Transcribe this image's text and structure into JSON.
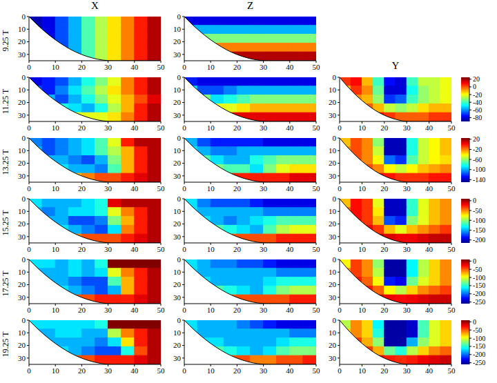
{
  "column_titles": [
    "X",
    "Z",
    "Y"
  ],
  "row_labels": [
    "9.25 T",
    "11.25 T",
    "13.25 T",
    "15.25 T",
    "17.25 T",
    "19.25 T"
  ],
  "xlim": [
    0,
    50
  ],
  "xticks": [
    0,
    10,
    20,
    30,
    40,
    50
  ],
  "ylim": [
    0,
    35
  ],
  "yticks": [
    0,
    10,
    20,
    30
  ],
  "x_edges": [
    0,
    5,
    10,
    15,
    20,
    25,
    30,
    35,
    40,
    45,
    50
  ],
  "y_edges": [
    0,
    7,
    14,
    21,
    28,
    35
  ],
  "bottom": {
    "x": [
      0,
      4,
      8,
      12,
      16,
      20,
      24,
      28,
      32,
      36,
      40,
      44,
      50
    ],
    "depth": [
      0,
      8.2,
      15.3,
      21.3,
      26.3,
      30.1,
      32.8,
      34.5,
      35,
      35,
      35,
      35,
      35
    ]
  },
  "chart_data": [
    {
      "type": "heatmap",
      "row": 0,
      "column": 0,
      "color_range": [
        0,
        1
      ],
      "cells": [
        [
          0.05,
          0.1,
          0.2,
          0.3,
          0.45,
          0.55,
          0.65,
          0.75,
          0.85,
          0.95
        ],
        [
          0.05,
          0.1,
          0.2,
          0.3,
          0.45,
          0.55,
          0.65,
          0.75,
          0.85,
          0.95
        ],
        [
          0.05,
          0.1,
          0.2,
          0.3,
          0.45,
          0.55,
          0.65,
          0.75,
          0.85,
          0.95
        ],
        [
          0.05,
          0.1,
          0.2,
          0.3,
          0.45,
          0.55,
          0.65,
          0.75,
          0.85,
          0.95
        ],
        [
          0.05,
          0.1,
          0.2,
          0.3,
          0.45,
          0.55,
          0.65,
          0.75,
          0.85,
          0.95
        ]
      ]
    },
    {
      "type": "heatmap",
      "row": 0,
      "column": 1,
      "color_range": [
        0,
        1
      ],
      "cells": [
        [
          0.1,
          0.1,
          0.1,
          0.1,
          0.1,
          0.1,
          0.1,
          0.1,
          0.1,
          0.1
        ],
        [
          0.3,
          0.3,
          0.3,
          0.3,
          0.3,
          0.3,
          0.3,
          0.3,
          0.3,
          0.3
        ],
        [
          0.5,
          0.5,
          0.5,
          0.5,
          0.5,
          0.5,
          0.5,
          0.5,
          0.5,
          0.5
        ],
        [
          0.75,
          0.75,
          0.75,
          0.75,
          0.75,
          0.75,
          0.75,
          0.75,
          0.75,
          0.75
        ],
        [
          0.95,
          0.95,
          0.95,
          0.95,
          0.95,
          0.95,
          0.95,
          0.95,
          0.95,
          0.95
        ]
      ]
    },
    {
      "type": "heatmap",
      "row": 1,
      "column": 0,
      "color_range": [
        0,
        1
      ],
      "cells": [
        [
          0.1,
          0.15,
          0.2,
          0.3,
          0.4,
          0.5,
          0.6,
          0.75,
          0.85,
          0.95
        ],
        [
          0.2,
          0.15,
          0.25,
          0.35,
          0.45,
          0.55,
          0.65,
          0.75,
          0.85,
          0.95
        ],
        [
          0.3,
          0.3,
          0.2,
          0.3,
          0.4,
          0.5,
          0.6,
          0.7,
          0.8,
          0.9
        ],
        [
          0.4,
          0.4,
          0.4,
          0.35,
          0.3,
          0.4,
          0.55,
          0.7,
          0.85,
          0.95
        ],
        [
          0.6,
          0.6,
          0.6,
          0.6,
          0.6,
          0.6,
          0.65,
          0.75,
          0.85,
          0.95
        ]
      ]
    },
    {
      "type": "heatmap",
      "row": 1,
      "column": 1,
      "color_range": [
        0,
        1
      ],
      "cells": [
        [
          0.15,
          0.1,
          0.1,
          0.1,
          0.1,
          0.1,
          0.1,
          0.1,
          0.1,
          0.1
        ],
        [
          0.35,
          0.2,
          0.2,
          0.25,
          0.3,
          0.3,
          0.3,
          0.3,
          0.3,
          0.3
        ],
        [
          0.5,
          0.5,
          0.35,
          0.4,
          0.45,
          0.5,
          0.5,
          0.5,
          0.5,
          0.5
        ],
        [
          0.7,
          0.7,
          0.6,
          0.6,
          0.65,
          0.7,
          0.7,
          0.7,
          0.7,
          0.7
        ],
        [
          0.9,
          0.9,
          0.9,
          0.9,
          0.9,
          0.9,
          0.9,
          0.9,
          0.9,
          0.9
        ]
      ]
    },
    {
      "type": "heatmap",
      "row": 1,
      "column": 2,
      "colorbar": {
        "range": [
          -90,
          25
        ],
        "ticks": [
          20,
          0,
          -20,
          -40,
          -60,
          -80
        ]
      },
      "cells": [
        [
          5,
          10,
          -10,
          -40,
          -75,
          -80,
          -40,
          -25,
          -25,
          -20
        ],
        [
          -10,
          5,
          -5,
          -35,
          -80,
          -80,
          -45,
          -30,
          -25,
          -20
        ],
        [
          -5,
          -5,
          -10,
          -30,
          -70,
          -65,
          -40,
          -30,
          -25,
          -20
        ],
        [
          10,
          5,
          0,
          -10,
          -25,
          -30,
          -25,
          -15,
          -10,
          -10
        ],
        [
          15,
          15,
          15,
          10,
          5,
          0,
          0,
          0,
          5,
          5
        ]
      ]
    },
    {
      "type": "heatmap",
      "row": 2,
      "column": 0,
      "color_range": [
        0,
        1
      ],
      "cells": [
        [
          0.25,
          0.2,
          0.25,
          0.3,
          0.35,
          0.45,
          0.6,
          0.85,
          0.95,
          0.95
        ],
        [
          0.3,
          0.2,
          0.25,
          0.3,
          0.35,
          0.45,
          0.55,
          0.7,
          0.85,
          0.95
        ],
        [
          0.3,
          0.3,
          0.3,
          0.25,
          0.2,
          0.3,
          0.5,
          0.7,
          0.85,
          0.95
        ],
        [
          0.5,
          0.4,
          0.35,
          0.3,
          0.3,
          0.25,
          0.45,
          0.7,
          0.85,
          0.95
        ],
        [
          0.7,
          0.7,
          0.7,
          0.7,
          0.75,
          0.8,
          0.8,
          0.85,
          0.9,
          0.95
        ]
      ]
    },
    {
      "type": "heatmap",
      "row": 2,
      "column": 1,
      "color_range": [
        0,
        1
      ],
      "cells": [
        [
          0.3,
          0.2,
          0.15,
          0.15,
          0.15,
          0.15,
          0.1,
          0.1,
          0.1,
          0.1
        ],
        [
          0.35,
          0.3,
          0.25,
          0.25,
          0.3,
          0.3,
          0.3,
          0.3,
          0.3,
          0.3
        ],
        [
          0.5,
          0.45,
          0.35,
          0.3,
          0.3,
          0.4,
          0.45,
          0.5,
          0.5,
          0.5
        ],
        [
          0.7,
          0.6,
          0.5,
          0.45,
          0.45,
          0.35,
          0.5,
          0.6,
          0.65,
          0.65
        ],
        [
          0.9,
          0.9,
          0.9,
          0.85,
          0.85,
          0.85,
          0.85,
          0.85,
          0.9,
          0.9
        ]
      ]
    },
    {
      "type": "heatmap",
      "row": 2,
      "column": 2,
      "colorbar": {
        "range": [
          -150,
          25
        ],
        "ticks": [
          20,
          -20,
          -60,
          -100,
          -140
        ]
      },
      "cells": [
        [
          -30,
          -10,
          -20,
          -60,
          -140,
          -140,
          -80,
          -50,
          -40,
          -30
        ],
        [
          -20,
          -10,
          -20,
          -50,
          -140,
          -140,
          -80,
          -50,
          -40,
          -30
        ],
        [
          -10,
          -10,
          -20,
          -40,
          -110,
          -120,
          -70,
          -50,
          -40,
          -35
        ],
        [
          0,
          0,
          -10,
          -20,
          -40,
          -50,
          -40,
          -30,
          -25,
          -20
        ],
        [
          10,
          10,
          10,
          5,
          0,
          -5,
          -5,
          -5,
          0,
          0
        ]
      ]
    },
    {
      "type": "heatmap",
      "row": 3,
      "column": 0,
      "color_range": [
        0,
        1
      ],
      "cells": [
        [
          0.35,
          0.3,
          0.3,
          0.3,
          0.35,
          0.4,
          0.9,
          0.95,
          0.95,
          0.95
        ],
        [
          0.3,
          0.25,
          0.3,
          0.35,
          0.35,
          0.4,
          0.6,
          0.75,
          0.85,
          0.95
        ],
        [
          0.35,
          0.3,
          0.3,
          0.2,
          0.2,
          0.25,
          0.5,
          0.7,
          0.85,
          0.95
        ],
        [
          0.5,
          0.4,
          0.35,
          0.3,
          0.25,
          0.2,
          0.35,
          0.75,
          0.85,
          0.95
        ],
        [
          0.7,
          0.7,
          0.7,
          0.75,
          0.8,
          0.8,
          0.8,
          0.85,
          0.9,
          0.95
        ]
      ]
    },
    {
      "type": "heatmap",
      "row": 3,
      "column": 1,
      "color_range": [
        0,
        1
      ],
      "cells": [
        [
          0.35,
          0.25,
          0.2,
          0.2,
          0.2,
          0.15,
          0.1,
          0.1,
          0.1,
          0.1
        ],
        [
          0.35,
          0.3,
          0.3,
          0.3,
          0.3,
          0.3,
          0.25,
          0.25,
          0.25,
          0.25
        ],
        [
          0.45,
          0.35,
          0.3,
          0.25,
          0.3,
          0.35,
          0.4,
          0.45,
          0.45,
          0.45
        ],
        [
          0.65,
          0.5,
          0.45,
          0.4,
          0.35,
          0.3,
          0.45,
          0.55,
          0.6,
          0.6
        ],
        [
          0.9,
          0.85,
          0.85,
          0.8,
          0.8,
          0.8,
          0.8,
          0.85,
          0.85,
          0.85
        ]
      ]
    },
    {
      "type": "heatmap",
      "row": 3,
      "column": 2,
      "colorbar": {
        "range": [
          -215,
          10
        ],
        "ticks": [
          0,
          -50,
          -100,
          -150,
          -200
        ]
      },
      "cells": [
        [
          -60,
          -20,
          -30,
          -80,
          -200,
          -200,
          -120,
          -80,
          -60,
          -50
        ],
        [
          -40,
          -20,
          -30,
          -70,
          -200,
          -200,
          -120,
          -80,
          -60,
          -50
        ],
        [
          -20,
          -20,
          -30,
          -60,
          -170,
          -180,
          -100,
          -80,
          -60,
          -50
        ],
        [
          -10,
          -10,
          -15,
          -30,
          -60,
          -80,
          -60,
          -50,
          -40,
          -30
        ],
        [
          0,
          0,
          0,
          -5,
          -10,
          -15,
          -15,
          -10,
          -5,
          -5
        ]
      ]
    },
    {
      "type": "heatmap",
      "row": 4,
      "column": 0,
      "color_range": [
        0,
        1
      ],
      "cells": [
        [
          0.35,
          0.35,
          0.3,
          0.35,
          0.3,
          0.4,
          1.0,
          1.0,
          1.0,
          1.0
        ],
        [
          0.3,
          0.3,
          0.3,
          0.35,
          0.3,
          0.35,
          0.6,
          0.75,
          0.85,
          0.95
        ],
        [
          0.35,
          0.3,
          0.3,
          0.25,
          0.2,
          0.2,
          0.45,
          0.7,
          0.85,
          0.95
        ],
        [
          0.5,
          0.4,
          0.35,
          0.3,
          0.25,
          0.2,
          0.3,
          0.7,
          0.85,
          0.95
        ],
        [
          0.75,
          0.75,
          0.75,
          0.8,
          0.8,
          0.85,
          0.85,
          0.85,
          0.9,
          0.95
        ]
      ]
    },
    {
      "type": "heatmap",
      "row": 4,
      "column": 1,
      "color_range": [
        0,
        1
      ],
      "cells": [
        [
          0.35,
          0.3,
          0.25,
          0.25,
          0.2,
          0.2,
          0.15,
          0.1,
          0.1,
          0.1
        ],
        [
          0.35,
          0.3,
          0.3,
          0.3,
          0.3,
          0.3,
          0.3,
          0.25,
          0.25,
          0.25
        ],
        [
          0.4,
          0.35,
          0.3,
          0.3,
          0.3,
          0.3,
          0.35,
          0.4,
          0.4,
          0.4
        ],
        [
          0.6,
          0.5,
          0.45,
          0.4,
          0.35,
          0.3,
          0.4,
          0.5,
          0.55,
          0.55
        ],
        [
          0.9,
          0.85,
          0.85,
          0.8,
          0.8,
          0.8,
          0.8,
          0.8,
          0.85,
          0.85
        ]
      ]
    },
    {
      "type": "heatmap",
      "row": 4,
      "column": 2,
      "colorbar": {
        "range": [
          -260,
          10
        ],
        "ticks": [
          0,
          -50,
          -100,
          -150,
          -200,
          -250
        ]
      },
      "cells": [
        [
          -90,
          -40,
          -60,
          -120,
          -250,
          -250,
          -160,
          -110,
          -80,
          -60
        ],
        [
          -60,
          -40,
          -60,
          -110,
          -250,
          -250,
          -160,
          -110,
          -80,
          -60
        ],
        [
          -30,
          -30,
          -50,
          -90,
          -220,
          -230,
          -130,
          -100,
          -80,
          -60
        ],
        [
          -10,
          -15,
          -30,
          -50,
          -90,
          -110,
          -80,
          -60,
          -50,
          -40
        ],
        [
          0,
          0,
          -5,
          -10,
          -20,
          -25,
          -20,
          -15,
          -10,
          -10
        ]
      ]
    },
    {
      "type": "heatmap",
      "row": 5,
      "column": 0,
      "color_range": [
        0,
        1
      ],
      "cells": [
        [
          0.35,
          0.35,
          0.35,
          0.35,
          0.35,
          0.4,
          1.0,
          1.0,
          1.0,
          1.0
        ],
        [
          0.3,
          0.3,
          0.35,
          0.35,
          0.3,
          0.3,
          0.55,
          0.75,
          0.85,
          0.95
        ],
        [
          0.35,
          0.3,
          0.3,
          0.3,
          0.3,
          0.25,
          0.35,
          0.65,
          0.85,
          0.95
        ],
        [
          0.5,
          0.4,
          0.35,
          0.3,
          0.25,
          0.2,
          0.2,
          0.4,
          0.8,
          0.95
        ],
        [
          0.8,
          0.8,
          0.8,
          0.8,
          0.8,
          0.85,
          0.85,
          0.85,
          0.9,
          0.95
        ]
      ]
    },
    {
      "type": "heatmap",
      "row": 5,
      "column": 1,
      "color_range": [
        0,
        1
      ],
      "cells": [
        [
          0.35,
          0.3,
          0.3,
          0.3,
          0.25,
          0.2,
          0.15,
          0.1,
          0.1,
          0.1
        ],
        [
          0.35,
          0.3,
          0.3,
          0.3,
          0.3,
          0.3,
          0.3,
          0.3,
          0.25,
          0.25
        ],
        [
          0.4,
          0.35,
          0.35,
          0.3,
          0.3,
          0.3,
          0.3,
          0.35,
          0.4,
          0.4
        ],
        [
          0.6,
          0.5,
          0.45,
          0.4,
          0.35,
          0.3,
          0.35,
          0.45,
          0.5,
          0.5
        ],
        [
          0.85,
          0.85,
          0.8,
          0.8,
          0.8,
          0.75,
          0.75,
          0.8,
          0.8,
          0.85
        ]
      ]
    },
    {
      "type": "heatmap",
      "row": 5,
      "column": 2,
      "colorbar": {
        "range": [
          -260,
          10
        ],
        "ticks": [
          0,
          -50,
          -100,
          -150,
          -200,
          -250
        ]
      },
      "cells": [
        [
          -110,
          -60,
          -80,
          -160,
          -250,
          -250,
          -240,
          -140,
          -100,
          -80
        ],
        [
          -80,
          -60,
          -80,
          -150,
          -250,
          -250,
          -240,
          -140,
          -100,
          -80
        ],
        [
          -40,
          -40,
          -70,
          -120,
          -250,
          -250,
          -180,
          -120,
          -100,
          -80
        ],
        [
          -15,
          -20,
          -40,
          -70,
          -130,
          -150,
          -110,
          -80,
          -60,
          -50
        ],
        [
          0,
          -5,
          -10,
          -15,
          -30,
          -35,
          -30,
          -20,
          -15,
          -10
        ]
      ]
    }
  ]
}
